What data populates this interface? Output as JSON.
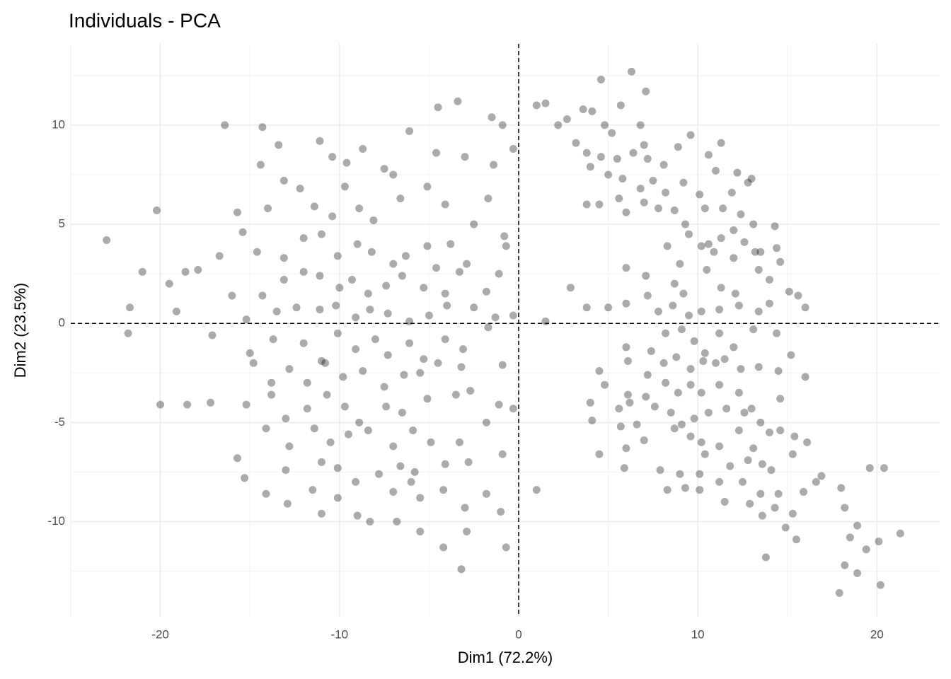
{
  "chart_data": {
    "type": "scatter",
    "title": "Individuals - PCA",
    "x_label": "Dim1 (72.2%)",
    "y_label": "Dim2 (23.5%)",
    "xlim": [
      -25,
      23.5
    ],
    "ylim": [
      -14.8,
      14.1
    ],
    "xticks": [
      -20,
      -10,
      0,
      10,
      20
    ],
    "yticks": [
      -10,
      -5,
      0,
      5,
      10
    ],
    "xminor": [
      -25,
      -15,
      -5,
      5,
      15
    ],
    "yminor": [
      -12.5,
      -7.5,
      -2.5,
      2.5,
      7.5,
      12.5
    ],
    "grid": true,
    "hline": 0,
    "vline": 0,
    "color": "#000000",
    "alpha": 0.33,
    "points": [
      [
        -23,
        4.2
      ],
      [
        -20.2,
        5.7
      ],
      [
        -21,
        2.6
      ],
      [
        -21.7,
        0.8
      ],
      [
        -21.8,
        -0.5
      ],
      [
        -20,
        -4.1
      ],
      [
        -18.5,
        -4.1
      ],
      [
        -17.2,
        -4
      ],
      [
        -16.4,
        10
      ],
      [
        -19.5,
        2
      ],
      [
        -19.1,
        0.6
      ],
      [
        -18.6,
        2.6
      ],
      [
        -17.9,
        2.7
      ],
      [
        -16.7,
        3.4
      ],
      [
        -17.1,
        -0.6
      ],
      [
        -14.3,
        9.9
      ],
      [
        -13.4,
        9.0
      ],
      [
        -14.4,
        8.0
      ],
      [
        -11.1,
        9.2
      ],
      [
        -10.4,
        8.4
      ],
      [
        -9.6,
        8.1
      ],
      [
        -8.7,
        8.8
      ],
      [
        -7.5,
        7.8
      ],
      [
        -7.0,
        7.5
      ],
      [
        -6.1,
        9.7
      ],
      [
        -4.5,
        10.9
      ],
      [
        -3.4,
        11.2
      ],
      [
        -4.6,
        8.6
      ],
      [
        -3.0,
        8.4
      ],
      [
        -1.5,
        10.4
      ],
      [
        -0.9,
        10.0
      ],
      [
        -1.4,
        8.0
      ],
      [
        -0.3,
        8.8
      ],
      [
        -14.0,
        5.8
      ],
      [
        -15.7,
        5.6
      ],
      [
        -13.1,
        7.2
      ],
      [
        -12.2,
        6.8
      ],
      [
        -11.4,
        5.9
      ],
      [
        -10.4,
        5.4
      ],
      [
        -9.7,
        6.9
      ],
      [
        -8.9,
        5.8
      ],
      [
        -8.1,
        5.2
      ],
      [
        -6.6,
        6.3
      ],
      [
        -5.1,
        6.9
      ],
      [
        -4.1,
        6.0
      ],
      [
        -2.5,
        5.0
      ],
      [
        -1.7,
        6.3
      ],
      [
        -0.8,
        4.4
      ],
      [
        -15.4,
        4.6
      ],
      [
        -14.6,
        3.6
      ],
      [
        -13.1,
        3.3
      ],
      [
        -12.0,
        4.3
      ],
      [
        -11.0,
        4.5
      ],
      [
        -10.1,
        3.4
      ],
      [
        -9.0,
        4.0
      ],
      [
        -8.2,
        3.6
      ],
      [
        -7.0,
        3.0
      ],
      [
        -6.3,
        3.4
      ],
      [
        -5.1,
        3.9
      ],
      [
        -4.6,
        2.8
      ],
      [
        -3.8,
        4.0
      ],
      [
        -2.9,
        3.0
      ],
      [
        -1.1,
        2.5
      ],
      [
        -0.7,
        3.9
      ],
      [
        -16.0,
        1.4
      ],
      [
        -14.3,
        1.4
      ],
      [
        -13.1,
        2.2
      ],
      [
        -12.0,
        2.6
      ],
      [
        -11.1,
        2.4
      ],
      [
        -10.0,
        1.8
      ],
      [
        -9.3,
        2.2
      ],
      [
        -8.4,
        1.5
      ],
      [
        -7.4,
        1.9
      ],
      [
        -6.5,
        2.4
      ],
      [
        -5.3,
        1.8
      ],
      [
        -4.1,
        1.5
      ],
      [
        -3.3,
        2.6
      ],
      [
        -1.8,
        1.6
      ],
      [
        -0.3,
        0.4
      ],
      [
        -15.2,
        0.2
      ],
      [
        -13.5,
        0.6
      ],
      [
        -12.4,
        0.8
      ],
      [
        -11.1,
        0.7
      ],
      [
        -10.2,
        0.9
      ],
      [
        -9.1,
        0.3
      ],
      [
        -8.3,
        0.7
      ],
      [
        -7.3,
        0.5
      ],
      [
        -6.1,
        0.1
      ],
      [
        -5.0,
        0.4
      ],
      [
        -4.0,
        0.9
      ],
      [
        -2.5,
        0.8
      ],
      [
        -1.3,
        0.3
      ],
      [
        -15.0,
        -1.5
      ],
      [
        -13.7,
        -0.8
      ],
      [
        -12.0,
        -1.0
      ],
      [
        -11.0,
        -1.9
      ],
      [
        -10.1,
        -0.5
      ],
      [
        -9.1,
        -1.3
      ],
      [
        -8.0,
        -0.8
      ],
      [
        -7.3,
        -1.6
      ],
      [
        -6.1,
        -1.0
      ],
      [
        -5.3,
        -1.8
      ],
      [
        -4.1,
        -0.8
      ],
      [
        -3.1,
        -1.3
      ],
      [
        -1.7,
        -0.2
      ],
      [
        -14.8,
        -2.0
      ],
      [
        -13.8,
        -3.0
      ],
      [
        -12.8,
        -2.3
      ],
      [
        -11.8,
        -3.0
      ],
      [
        -10.8,
        -2.0
      ],
      [
        -9.8,
        -2.7
      ],
      [
        -8.7,
        -2.4
      ],
      [
        -7.5,
        -3.2
      ],
      [
        -6.4,
        -2.6
      ],
      [
        -5.5,
        -2.5
      ],
      [
        -4.5,
        -2.0
      ],
      [
        -3.2,
        -2.2
      ],
      [
        -0.9,
        -2.1
      ],
      [
        -15.2,
        -4.1
      ],
      [
        -13.8,
        -3.6
      ],
      [
        -13.0,
        -4.8
      ],
      [
        -11.8,
        -4.3
      ],
      [
        -10.7,
        -3.6
      ],
      [
        -9.7,
        -4.2
      ],
      [
        -8.9,
        -5.0
      ],
      [
        -7.4,
        -4.2
      ],
      [
        -6.5,
        -4.5
      ],
      [
        -5.1,
        -3.8
      ],
      [
        -3.5,
        -3.6
      ],
      [
        -2.7,
        -3.4
      ],
      [
        -1.1,
        -4.1
      ],
      [
        -0.3,
        -4.3
      ],
      [
        -14.1,
        -5.3
      ],
      [
        -12.8,
        -6.2
      ],
      [
        -11.4,
        -5.3
      ],
      [
        -10.5,
        -6.0
      ],
      [
        -9.5,
        -5.6
      ],
      [
        -8.4,
        -5.4
      ],
      [
        -7.0,
        -6.2
      ],
      [
        -5.9,
        -5.4
      ],
      [
        -4.9,
        -6.0
      ],
      [
        -3.3,
        -6.0
      ],
      [
        -1.8,
        -5.0
      ],
      [
        -0.9,
        -6.6
      ],
      [
        -15.7,
        -6.8
      ],
      [
        -13.0,
        -7.4
      ],
      [
        -11.0,
        -7.0
      ],
      [
        -10.1,
        -7.3
      ],
      [
        -9.1,
        -8.0
      ],
      [
        -7.8,
        -7.6
      ],
      [
        -6.6,
        -7.2
      ],
      [
        -5.8,
        -7.5
      ],
      [
        -4.1,
        -7.1
      ],
      [
        -2.8,
        -7.0
      ],
      [
        -15.3,
        -7.8
      ],
      [
        -14.1,
        -8.6
      ],
      [
        -12.9,
        -9.1
      ],
      [
        -11.5,
        -8.4
      ],
      [
        -10.1,
        -8.8
      ],
      [
        -9.0,
        -9.7
      ],
      [
        -8.3,
        -10.0
      ],
      [
        -7.0,
        -8.5
      ],
      [
        -5.5,
        -8.8
      ],
      [
        -4.2,
        -8.4
      ],
      [
        -3.0,
        -9.3
      ],
      [
        -1.0,
        -9.5
      ],
      [
        -11.0,
        -9.6
      ],
      [
        -6.8,
        -10.0
      ],
      [
        -5.5,
        -10.5
      ],
      [
        -2.9,
        -10.5
      ],
      [
        -0.7,
        -11.3
      ],
      [
        -4.2,
        -11.3
      ],
      [
        -3.2,
        -12.4
      ],
      [
        -1.8,
        -8.6
      ],
      [
        -6.0,
        -8.0
      ],
      [
        1.0,
        11.0
      ],
      [
        1.5,
        11.1
      ],
      [
        2.2,
        10.0
      ],
      [
        2.7,
        10.3
      ],
      [
        3.6,
        10.8
      ],
      [
        4.1,
        10.7
      ],
      [
        4.8,
        10.0
      ],
      [
        5.2,
        9.6
      ],
      [
        5.7,
        11.0
      ],
      [
        6.8,
        10.0
      ],
      [
        7.0,
        9.0
      ],
      [
        4.6,
        12.3
      ],
      [
        6.3,
        12.7
      ],
      [
        7.1,
        11.7
      ],
      [
        3.2,
        9.1
      ],
      [
        3.8,
        8.6
      ],
      [
        4.6,
        8.4
      ],
      [
        5.5,
        8.3
      ],
      [
        6.4,
        8.6
      ],
      [
        7.2,
        8.3
      ],
      [
        8.1,
        8.0
      ],
      [
        8.9,
        8.9
      ],
      [
        9.6,
        9.5
      ],
      [
        10.6,
        8.5
      ],
      [
        11.3,
        9.1
      ],
      [
        12.2,
        7.6
      ],
      [
        12.8,
        7.1
      ],
      [
        13.0,
        7.3
      ],
      [
        4.0,
        7.9
      ],
      [
        5.0,
        7.5
      ],
      [
        5.8,
        7.3
      ],
      [
        6.8,
        6.8
      ],
      [
        7.5,
        7.2
      ],
      [
        8.2,
        6.6
      ],
      [
        9.2,
        7.1
      ],
      [
        10.1,
        6.5
      ],
      [
        11.0,
        7.7
      ],
      [
        11.9,
        6.6
      ],
      [
        3.8,
        6.0
      ],
      [
        4.5,
        6.0
      ],
      [
        5.6,
        6.3
      ],
      [
        6.0,
        5.6
      ],
      [
        7.0,
        6.1
      ],
      [
        7.8,
        5.8
      ],
      [
        8.7,
        5.7
      ],
      [
        9.3,
        5.0
      ],
      [
        10.4,
        5.8
      ],
      [
        11.4,
        5.8
      ],
      [
        12.4,
        5.5
      ],
      [
        13.1,
        5.0
      ],
      [
        9.5,
        4.5
      ],
      [
        10.6,
        4.0
      ],
      [
        11.3,
        4.3
      ],
      [
        12.0,
        4.7
      ],
      [
        12.6,
        4.1
      ],
      [
        13.5,
        3.6
      ],
      [
        14.3,
        4.9
      ],
      [
        8.3,
        3.9
      ],
      [
        9.0,
        3.0
      ],
      [
        10.2,
        3.9
      ],
      [
        10.9,
        3.6
      ],
      [
        12.0,
        3.3
      ],
      [
        13.2,
        3.6
      ],
      [
        14.4,
        3.8
      ],
      [
        6.0,
        2.8
      ],
      [
        7.1,
        2.4
      ],
      [
        8.7,
        2.0
      ],
      [
        9.2,
        1.5
      ],
      [
        10.5,
        2.7
      ],
      [
        11.3,
        1.8
      ],
      [
        12.1,
        1.5
      ],
      [
        13.4,
        2.7
      ],
      [
        14.0,
        2.2
      ],
      [
        14.6,
        3.1
      ],
      [
        2.9,
        1.8
      ],
      [
        3.8,
        0.8
      ],
      [
        5.0,
        0.8
      ],
      [
        6.0,
        1.0
      ],
      [
        7.2,
        1.4
      ],
      [
        7.8,
        0.6
      ],
      [
        8.6,
        0.9
      ],
      [
        9.5,
        0.4
      ],
      [
        10.2,
        0.6
      ],
      [
        11.2,
        0.7
      ],
      [
        12.3,
        0.9
      ],
      [
        13.4,
        0.6
      ],
      [
        14.0,
        1.0
      ],
      [
        15.1,
        1.6
      ],
      [
        16.0,
        0.8
      ],
      [
        15.6,
        1.4
      ],
      [
        1.5,
        0.1
      ],
      [
        6.0,
        -1.2
      ],
      [
        7.4,
        -1.4
      ],
      [
        8.2,
        -0.5
      ],
      [
        9.1,
        -0.3
      ],
      [
        9.8,
        -0.9
      ],
      [
        10.4,
        -1.5
      ],
      [
        11.2,
        -0.5
      ],
      [
        12.0,
        -1.2
      ],
      [
        13.1,
        -0.3
      ],
      [
        14.4,
        -0.5
      ],
      [
        15.2,
        -1.6
      ],
      [
        4.5,
        -2.4
      ],
      [
        6.1,
        -1.9
      ],
      [
        7.2,
        -2.6
      ],
      [
        8.1,
        -2.0
      ],
      [
        8.8,
        -1.7
      ],
      [
        9.6,
        -2.3
      ],
      [
        10.3,
        -1.9
      ],
      [
        11.0,
        -2.0
      ],
      [
        11.5,
        -1.8
      ],
      [
        12.4,
        -2.3
      ],
      [
        13.4,
        -2.2
      ],
      [
        14.5,
        -2.4
      ],
      [
        16.0,
        -2.7
      ],
      [
        4.8,
        -3.1
      ],
      [
        6.1,
        -3.6
      ],
      [
        7.1,
        -3.7
      ],
      [
        8.2,
        -3.0
      ],
      [
        8.9,
        -3.5
      ],
      [
        9.6,
        -3.1
      ],
      [
        10.2,
        -3.5
      ],
      [
        11.2,
        -3.1
      ],
      [
        12.3,
        -3.5
      ],
      [
        13.0,
        -4.3
      ],
      [
        14.6,
        -3.8
      ],
      [
        4.0,
        -4.0
      ],
      [
        5.6,
        -4.3
      ],
      [
        6.2,
        -4.0
      ],
      [
        7.6,
        -4.2
      ],
      [
        8.5,
        -4.5
      ],
      [
        9.1,
        -5.1
      ],
      [
        9.8,
        -4.8
      ],
      [
        10.6,
        -4.5
      ],
      [
        11.6,
        -4.3
      ],
      [
        12.6,
        -4.5
      ],
      [
        13.5,
        -5.0
      ],
      [
        14.0,
        -5.5
      ],
      [
        4.1,
        -4.9
      ],
      [
        5.7,
        -5.2
      ],
      [
        6.6,
        -5.1
      ],
      [
        8.7,
        -5.3
      ],
      [
        9.6,
        -5.7
      ],
      [
        10.2,
        -6.0
      ],
      [
        11.2,
        -6.2
      ],
      [
        12.3,
        -5.4
      ],
      [
        13.1,
        -6.3
      ],
      [
        14.6,
        -5.4
      ],
      [
        15.4,
        -5.7
      ],
      [
        16.1,
        -6.0
      ],
      [
        6.0,
        -6.3
      ],
      [
        7.0,
        -5.9
      ],
      [
        10.4,
        -6.6
      ],
      [
        11.8,
        -7.2
      ],
      [
        12.8,
        -6.9
      ],
      [
        13.6,
        -7.1
      ],
      [
        14.1,
        -7.4
      ],
      [
        15.3,
        -6.6
      ],
      [
        4.5,
        -6.6
      ],
      [
        5.9,
        -7.3
      ],
      [
        7.9,
        -7.4
      ],
      [
        9.0,
        -7.6
      ],
      [
        10.1,
        -7.6
      ],
      [
        11.2,
        -8.0
      ],
      [
        12.5,
        -8.0
      ],
      [
        13.5,
        -8.6
      ],
      [
        14.5,
        -8.6
      ],
      [
        15.9,
        -8.5
      ],
      [
        16.9,
        -7.7
      ],
      [
        8.3,
        -8.4
      ],
      [
        9.3,
        -8.3
      ],
      [
        10.1,
        -8.4
      ],
      [
        11.5,
        -9.0
      ],
      [
        12.9,
        -9.1
      ],
      [
        14.3,
        -9.3
      ],
      [
        15.3,
        -9.6
      ],
      [
        16.6,
        -8.0
      ],
      [
        1.0,
        -8.4
      ],
      [
        13.6,
        -9.7
      ],
      [
        14.9,
        -10.3
      ],
      [
        15.5,
        -10.9
      ],
      [
        13.8,
        -11.8
      ],
      [
        18.0,
        -8.3
      ],
      [
        18.2,
        -9.3
      ],
      [
        18.9,
        -10.2
      ],
      [
        18.5,
        -10.8
      ],
      [
        19.4,
        -11.4
      ],
      [
        20.1,
        -11.0
      ],
      [
        18.2,
        -12.2
      ],
      [
        18.9,
        -12.6
      ],
      [
        17.9,
        -13.6
      ],
      [
        20.2,
        -13.2
      ],
      [
        21.3,
        -10.6
      ],
      [
        19.6,
        -7.3
      ],
      [
        20.4,
        -7.3
      ]
    ]
  }
}
